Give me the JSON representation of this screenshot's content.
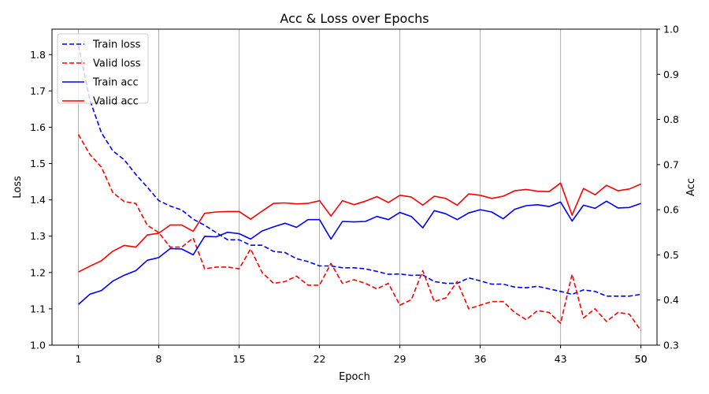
{
  "chart_data": {
    "type": "line",
    "title": "Acc & Loss over Epochs",
    "xlabel": "Epoch",
    "ylabel_left": "Loss",
    "ylabel_right": "Acc",
    "ylim_left": [
      1.0,
      1.87
    ],
    "ylim_right": [
      0.3,
      1.0
    ],
    "xlim": [
      -1.3,
      51.4
    ],
    "x_ticks": [
      1,
      8,
      15,
      22,
      29,
      36,
      43,
      50
    ],
    "x_tick_labels": [
      "1",
      "8",
      "15",
      "22",
      "29",
      "36",
      "43",
      "50"
    ],
    "extra_x_tick_labels": [
      {
        "x": 50,
        "label": "50"
      }
    ],
    "y_ticks_left": [
      1.0,
      1.1,
      1.2,
      1.3,
      1.4,
      1.5,
      1.6,
      1.7,
      1.8
    ],
    "y_tick_labels_left": [
      "1.0",
      "1.1",
      "1.2",
      "1.3",
      "1.4",
      "1.5",
      "1.6",
      "1.7",
      "1.8"
    ],
    "y_ticks_right": [
      0.3,
      0.4,
      0.5,
      0.6,
      0.7,
      0.8,
      0.9,
      1.0
    ],
    "y_tick_labels_right": [
      "0.3",
      "0.4",
      "0.5",
      "0.6",
      "0.7",
      "0.8",
      "0.9",
      "1.0"
    ],
    "grid": "vertical",
    "legend_position": "top-left",
    "x": [
      1,
      2,
      3,
      4,
      5,
      6,
      7,
      8,
      9,
      10,
      11,
      12,
      13,
      14,
      15,
      16,
      17,
      18,
      19,
      20,
      21,
      22,
      23,
      24,
      25,
      26,
      27,
      28,
      29,
      30,
      31,
      32,
      33,
      34,
      35,
      36,
      37,
      38,
      39,
      40,
      41,
      42,
      43,
      44,
      45,
      46,
      47,
      48,
      49,
      50
    ],
    "series": [
      {
        "name": "Train loss",
        "axis": "left",
        "color": "#0000ff",
        "style": "dashed",
        "values": [
          1.825,
          1.675,
          1.585,
          1.535,
          1.51,
          1.47,
          1.435,
          1.398,
          1.383,
          1.372,
          1.347,
          1.33,
          1.31,
          1.29,
          1.29,
          1.275,
          1.275,
          1.258,
          1.255,
          1.238,
          1.23,
          1.218,
          1.218,
          1.213,
          1.213,
          1.21,
          1.203,
          1.195,
          1.196,
          1.192,
          1.193,
          1.175,
          1.17,
          1.17,
          1.185,
          1.177,
          1.168,
          1.168,
          1.16,
          1.158,
          1.162,
          1.155,
          1.148,
          1.14,
          1.152,
          1.148,
          1.135,
          1.135,
          1.135,
          1.14
        ]
      },
      {
        "name": "Valid loss",
        "axis": "left",
        "color": "#ff0000",
        "style": "dashed",
        "values": [
          1.58,
          1.525,
          1.49,
          1.42,
          1.395,
          1.39,
          1.33,
          1.31,
          1.27,
          1.27,
          1.295,
          1.21,
          1.215,
          1.215,
          1.21,
          1.265,
          1.2,
          1.17,
          1.175,
          1.19,
          1.165,
          1.165,
          1.225,
          1.17,
          1.18,
          1.17,
          1.155,
          1.17,
          1.11,
          1.125,
          1.205,
          1.12,
          1.13,
          1.175,
          1.1,
          1.11,
          1.12,
          1.12,
          1.09,
          1.07,
          1.095,
          1.09,
          1.06,
          1.195,
          1.075,
          1.1,
          1.065,
          1.09,
          1.085,
          1.04
        ]
      },
      {
        "name": "Train acc",
        "axis": "right",
        "color": "#0000ff",
        "style": "solid",
        "values": [
          0.39,
          0.413,
          0.421,
          0.442,
          0.455,
          0.465,
          0.488,
          0.494,
          0.514,
          0.513,
          0.5,
          0.541,
          0.54,
          0.55,
          0.547,
          0.535,
          0.553,
          0.562,
          0.57,
          0.561,
          0.578,
          0.578,
          0.535,
          0.574,
          0.573,
          0.574,
          0.585,
          0.578,
          0.594,
          0.585,
          0.56,
          0.598,
          0.591,
          0.578,
          0.593,
          0.6,
          0.595,
          0.58,
          0.601,
          0.609,
          0.611,
          0.607,
          0.617,
          0.575,
          0.61,
          0.603,
          0.619,
          0.604,
          0.605,
          0.614
        ]
      },
      {
        "name": "Valid acc",
        "axis": "right",
        "color": "#ff0000",
        "style": "solid",
        "values": [
          0.462,
          0.475,
          0.487,
          0.508,
          0.521,
          0.517,
          0.544,
          0.548,
          0.566,
          0.566,
          0.552,
          0.592,
          0.595,
          0.596,
          0.596,
          0.579,
          0.597,
          0.614,
          0.615,
          0.613,
          0.614,
          0.62,
          0.586,
          0.62,
          0.611,
          0.619,
          0.629,
          0.616,
          0.632,
          0.628,
          0.61,
          0.63,
          0.625,
          0.61,
          0.635,
          0.632,
          0.625,
          0.63,
          0.642,
          0.645,
          0.641,
          0.64,
          0.659,
          0.588,
          0.647,
          0.633,
          0.654,
          0.642,
          0.646,
          0.657
        ]
      }
    ]
  }
}
